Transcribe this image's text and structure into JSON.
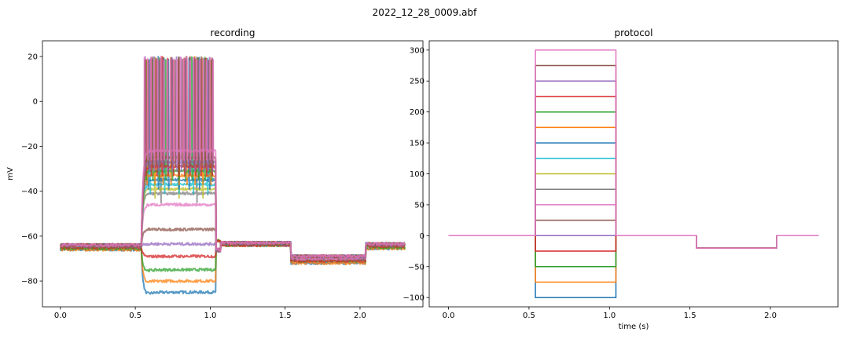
{
  "suptitle": "2022_12_28_0009.abf",
  "colors": [
    "#1f77b4",
    "#ff7f0e",
    "#2ca02c",
    "#d62728",
    "#9467bd",
    "#8c564b",
    "#e377c2",
    "#7f7f7f",
    "#bcbd22",
    "#17becf"
  ],
  "chart_data": [
    {
      "type": "line",
      "title": "recording",
      "xlabel": "",
      "ylabel": "mV",
      "xlim": [
        -0.12,
        2.42
      ],
      "ylim": [
        -91.5,
        27
      ],
      "xticks": [
        "0.0",
        "0.5",
        "1.0",
        "1.5",
        "2.0"
      ],
      "xtick_values": [
        0,
        0.5,
        1.0,
        1.5,
        2.0
      ],
      "yticks": [
        "−80",
        "−60",
        "−40",
        "−20",
        "0",
        "20"
      ],
      "ytick_values": [
        -80,
        -60,
        -40,
        -20,
        0,
        20
      ],
      "grid": false,
      "step_window_s": [
        0.54,
        1.04
      ],
      "hyperpol_window_s": [
        1.54,
        2.04
      ],
      "duration_s": 2.3,
      "sweeps": [
        {
          "baseline": -66,
          "step_level": -85,
          "post": -64,
          "hyper": -72
        },
        {
          "baseline": -66,
          "step_level": -80,
          "post": -64,
          "hyper": -72
        },
        {
          "baseline": -65.5,
          "step_level": -75,
          "post": -64,
          "hyper": -71
        },
        {
          "baseline": -65,
          "step_level": -69,
          "post": -64,
          "hyper": -71
        },
        {
          "baseline": -64.5,
          "step_level": -63.5,
          "post": -63.5,
          "hyper": -70
        },
        {
          "baseline": -64.5,
          "step_level": -57,
          "post": -63.5,
          "hyper": -70
        },
        {
          "baseline": -64,
          "step_level": -46,
          "post": -63,
          "hyper": -70
        },
        {
          "baseline": -64,
          "step_level": -41,
          "post": -63,
          "hyper": -69,
          "spikes": 2
        },
        {
          "baseline": -64,
          "step_level": -39,
          "post": -63,
          "hyper": -69,
          "spikes": 3
        },
        {
          "baseline": -64,
          "step_level": -37,
          "post": -63,
          "hyper": -69,
          "spikes": 5
        },
        {
          "baseline": -64,
          "step_level": -35,
          "post": -63,
          "hyper": -69,
          "spikes": 7
        },
        {
          "baseline": -64,
          "step_level": -33,
          "post": -63,
          "hyper": -69,
          "spikes": 9
        },
        {
          "baseline": -64,
          "step_level": -31,
          "post": -63,
          "hyper": -69,
          "spikes": 11
        },
        {
          "baseline": -64,
          "step_level": -29,
          "post": -63,
          "hyper": -69,
          "spikes": 13
        },
        {
          "baseline": -64,
          "step_level": -27,
          "post": -63,
          "hyper": -69,
          "spikes": 16
        },
        {
          "baseline": -64,
          "step_level": -25,
          "post": -63,
          "hyper": -69,
          "spikes": 19
        },
        {
          "baseline": -64,
          "step_level": -22,
          "post": -63,
          "hyper": -69,
          "spikes": 22
        }
      ]
    },
    {
      "type": "line",
      "title": "protocol",
      "xlabel": "time (s)",
      "ylabel": "",
      "xlim": [
        -0.12,
        2.42
      ],
      "ylim": [
        -115,
        315
      ],
      "xticks": [
        "0.0",
        "0.5",
        "1.0",
        "1.5",
        "2.0"
      ],
      "xtick_values": [
        0,
        0.5,
        1.0,
        1.5,
        2.0
      ],
      "yticks": [
        "−100",
        "−50",
        "0",
        "50",
        "100",
        "150",
        "200",
        "250",
        "300"
      ],
      "ytick_values": [
        -100,
        -50,
        0,
        50,
        100,
        150,
        200,
        250,
        300
      ],
      "grid": false,
      "step_window_s": [
        0.54,
        1.04
      ],
      "hyperpol_window_s": [
        1.54,
        2.04
      ],
      "hyperpol_level": -20,
      "duration_s": 2.3,
      "step_levels": [
        -100,
        -75,
        -50,
        -25,
        0,
        25,
        50,
        75,
        100,
        125,
        150,
        175,
        200,
        225,
        250,
        275,
        300
      ]
    }
  ]
}
